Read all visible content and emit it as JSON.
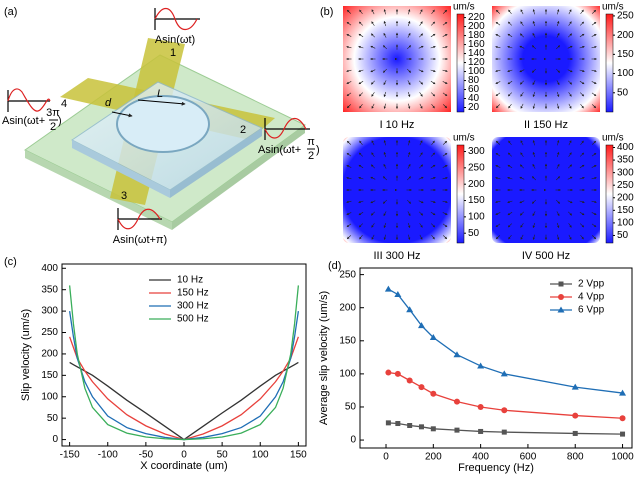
{
  "diagram": {
    "panel": "(a)",
    "electrodes": [
      "1",
      "2",
      "3",
      "4"
    ],
    "signals": [
      {
        "text": "Asin(ωt)"
      },
      {
        "prefix": "Asin(ωt+",
        "numerator": "π",
        "denominator": "2",
        "suffix": ")"
      },
      {
        "text": "Asin(ωt+π)"
      },
      {
        "prefix": "Asin(ωt+",
        "numerator": "3π",
        "denominator": "2",
        "suffix": ")"
      }
    ],
    "dimensions": [
      "d",
      "L"
    ]
  },
  "chart_data": [
    {
      "type": "heatmap",
      "panel": "(b)",
      "label": "I  10 Hz",
      "colorbar_title": "um/s",
      "clim": [
        10,
        228
      ],
      "cticks": [
        20,
        40,
        60,
        80,
        100,
        120,
        140,
        160,
        180,
        200,
        220
      ]
    },
    {
      "type": "heatmap",
      "label": "II  150 Hz",
      "colorbar_title": "um/s",
      "clim": [
        0,
        255
      ],
      "cticks": [
        50,
        100,
        150,
        200,
        250
      ]
    },
    {
      "type": "heatmap",
      "label": "III  300 Hz",
      "colorbar_title": "um/s",
      "clim": [
        20,
        320
      ],
      "cticks": [
        50,
        100,
        150,
        200,
        250,
        300
      ]
    },
    {
      "type": "heatmap",
      "label": "IV  500 Hz",
      "colorbar_title": "um/s",
      "clim": [
        20,
        410
      ],
      "cticks": [
        50,
        100,
        150,
        200,
        250,
        300,
        350,
        400
      ]
    },
    {
      "type": "line",
      "panel": "(c)",
      "x_label": "X coordinate (um)",
      "y_label": "Slip velocity (um/s)",
      "x": [
        -150,
        -145,
        -140,
        -130,
        -120,
        -100,
        -75,
        -50,
        -25,
        0,
        25,
        50,
        75,
        100,
        120,
        130,
        140,
        145,
        150
      ],
      "xlim": [
        -160,
        160
      ],
      "xticks": [
        -150,
        -100,
        -50,
        0,
        50,
        100,
        150
      ],
      "ylim": [
        -15,
        410
      ],
      "yticks": [
        0,
        50,
        100,
        150,
        200,
        250,
        300,
        350,
        400
      ],
      "legend": "upper center",
      "series": [
        {
          "name": "10 Hz",
          "color": "#333333",
          "values": [
            180,
            175,
            170,
            160,
            150,
            125,
            92,
            62,
            31,
            0,
            31,
            62,
            92,
            125,
            150,
            160,
            170,
            175,
            180
          ]
        },
        {
          "name": "150 Hz",
          "color": "#e8413c",
          "values": [
            240,
            215,
            190,
            160,
            135,
            95,
            58,
            32,
            13,
            0,
            13,
            32,
            58,
            95,
            135,
            160,
            190,
            215,
            240
          ]
        },
        {
          "name": "300 Hz",
          "color": "#1f6eb5",
          "values": [
            300,
            240,
            190,
            135,
            100,
            55,
            28,
            14,
            5,
            0,
            5,
            14,
            28,
            55,
            100,
            135,
            190,
            240,
            300
          ]
        },
        {
          "name": "500 Hz",
          "color": "#3aae5a",
          "values": [
            360,
            270,
            200,
            120,
            75,
            35,
            15,
            6,
            2,
            0,
            2,
            6,
            15,
            35,
            75,
            120,
            200,
            270,
            360
          ]
        }
      ]
    },
    {
      "type": "line",
      "panel": "(d)",
      "x_label": "Frequency (Hz)",
      "y_label": "Average slip velocity (um/s)",
      "x": [
        10,
        50,
        100,
        150,
        200,
        300,
        400,
        500,
        800,
        1000
      ],
      "xlim": [
        -110,
        1040
      ],
      "xticks": [
        0,
        200,
        400,
        600,
        800,
        1000
      ],
      "ylim": [
        -12,
        260
      ],
      "yticks": [
        0,
        50,
        100,
        150,
        200,
        250
      ],
      "legend": "upper right",
      "series": [
        {
          "name": "2 Vpp",
          "color": "#555555",
          "marker": "square",
          "values": [
            26,
            25,
            22,
            20,
            17,
            15,
            13,
            12,
            10,
            9
          ]
        },
        {
          "name": "4 Vpp",
          "color": "#e8413c",
          "marker": "circle",
          "values": [
            102,
            100,
            90,
            80,
            70,
            58,
            50,
            45,
            37,
            33
          ]
        },
        {
          "name": "6 Vpp",
          "color": "#1f6eb5",
          "marker": "triangle",
          "values": [
            228,
            220,
            197,
            173,
            155,
            129,
            112,
            100,
            80,
            71
          ]
        }
      ]
    }
  ]
}
